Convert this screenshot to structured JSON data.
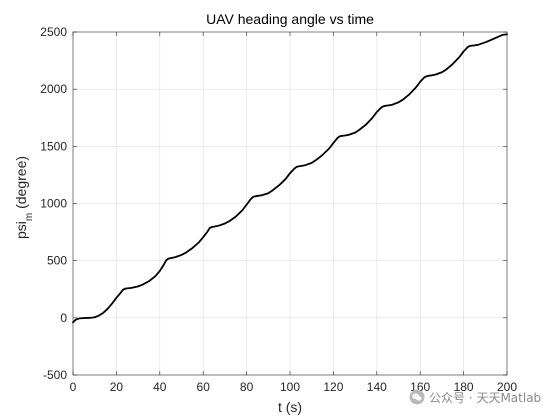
{
  "chart_data": {
    "type": "line",
    "title": "UAV heading angle vs time",
    "xlabel": "t (s)",
    "ylabel": "psi",
    "ylabel_subscript": "m",
    "ylabel_suffix": " (degree)",
    "xlim": [
      0,
      200
    ],
    "ylim": [
      -500,
      2500
    ],
    "xticks": [
      0,
      20,
      40,
      60,
      80,
      100,
      120,
      140,
      160,
      180,
      200
    ],
    "yticks": [
      -500,
      0,
      500,
      1000,
      1500,
      2000,
      2500
    ],
    "xtick_labels": [
      "0",
      "20",
      "40",
      "60",
      "80",
      "100",
      "120",
      "140",
      "160",
      "180",
      "200"
    ],
    "ytick_labels": [
      "-500",
      "0",
      "500",
      "1000",
      "1500",
      "2000",
      "2500"
    ],
    "grid": true,
    "legend": "none",
    "series": [
      {
        "color": "#000000",
        "x": [
          0,
          1,
          2,
          3,
          5,
          8,
          10,
          12,
          14,
          16,
          18,
          20,
          22,
          23,
          24,
          25,
          27,
          30,
          32,
          35,
          38,
          40,
          42,
          43,
          44,
          45,
          47,
          50,
          52,
          55,
          58,
          60,
          62,
          63,
          64,
          65,
          67,
          70,
          72,
          75,
          78,
          80,
          82,
          83,
          84,
          85,
          87,
          90,
          92,
          95,
          98,
          100,
          102,
          103,
          104,
          105,
          107,
          110,
          112,
          115,
          118,
          120,
          122,
          123,
          124,
          125,
          127,
          130,
          132,
          135,
          138,
          140,
          142,
          143,
          144,
          145,
          147,
          150,
          152,
          155,
          158,
          160,
          162,
          163,
          164,
          165,
          167,
          170,
          172,
          175,
          178,
          180,
          182,
          183,
          184,
          185,
          187,
          190,
          192,
          195,
          198,
          200
        ],
        "y": [
          -40,
          -20,
          -10,
          -5,
          -2,
          0,
          5,
          20,
          45,
          80,
          125,
          175,
          220,
          245,
          255,
          258,
          262,
          275,
          290,
          320,
          365,
          410,
          470,
          505,
          518,
          522,
          530,
          550,
          570,
          610,
          660,
          705,
          755,
          785,
          795,
          798,
          805,
          825,
          845,
          885,
          940,
          990,
          1040,
          1058,
          1063,
          1066,
          1072,
          1090,
          1115,
          1160,
          1215,
          1265,
          1305,
          1320,
          1325,
          1328,
          1335,
          1355,
          1380,
          1425,
          1480,
          1530,
          1575,
          1588,
          1592,
          1594,
          1600,
          1620,
          1645,
          1690,
          1750,
          1800,
          1838,
          1850,
          1855,
          1857,
          1863,
          1885,
          1908,
          1955,
          2015,
          2065,
          2105,
          2113,
          2117,
          2120,
          2127,
          2148,
          2172,
          2220,
          2280,
          2330,
          2370,
          2378,
          2381,
          2383,
          2390,
          2410,
          2425,
          2450,
          2475,
          2480
        ]
      }
    ]
  },
  "watermark": {
    "text": "公众号 · 天天Matlab"
  }
}
